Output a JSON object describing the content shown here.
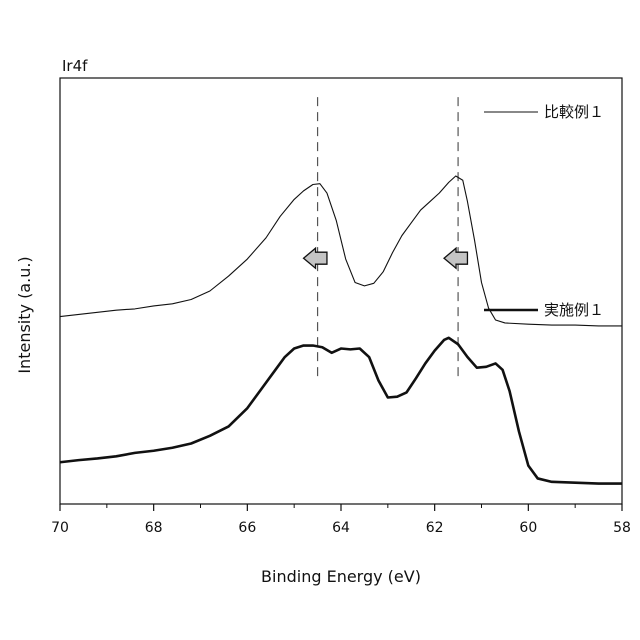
{
  "chart_data": {
    "type": "line",
    "title": "Ir4f",
    "xlabel": "Binding Energy (eV)",
    "ylabel": "Intensity (a.u.)",
    "xlim": [
      70,
      58
    ],
    "x_reversed": true,
    "y_ticks_shown": false,
    "grid": false,
    "legend_placement": "right",
    "x_ticks": [
      "70",
      "68",
      "66",
      "64",
      "62",
      "60",
      "58"
    ],
    "reference_lines_x": [
      64.5,
      61.5
    ],
    "shift_arrows": [
      {
        "x_from": 64.3,
        "x_to": 64.8,
        "direction": "toward higher binding energy"
      },
      {
        "x_from": 61.3,
        "x_to": 61.8,
        "direction": "toward higher binding energy"
      }
    ],
    "series": [
      {
        "name": "比較例１",
        "style": "thin",
        "color": "#111111",
        "points": [
          [
            70.0,
            0.44
          ],
          [
            69.6,
            0.445
          ],
          [
            69.2,
            0.45
          ],
          [
            68.8,
            0.455
          ],
          [
            68.4,
            0.458
          ],
          [
            68.0,
            0.465
          ],
          [
            67.6,
            0.47
          ],
          [
            67.2,
            0.48
          ],
          [
            66.8,
            0.5
          ],
          [
            66.4,
            0.535
          ],
          [
            66.0,
            0.575
          ],
          [
            65.6,
            0.625
          ],
          [
            65.3,
            0.675
          ],
          [
            65.0,
            0.715
          ],
          [
            64.8,
            0.735
          ],
          [
            64.6,
            0.75
          ],
          [
            64.45,
            0.752
          ],
          [
            64.3,
            0.73
          ],
          [
            64.1,
            0.665
          ],
          [
            63.9,
            0.575
          ],
          [
            63.7,
            0.52
          ],
          [
            63.5,
            0.512
          ],
          [
            63.3,
            0.518
          ],
          [
            63.1,
            0.545
          ],
          [
            62.9,
            0.59
          ],
          [
            62.7,
            0.63
          ],
          [
            62.5,
            0.66
          ],
          [
            62.3,
            0.69
          ],
          [
            62.1,
            0.71
          ],
          [
            61.9,
            0.73
          ],
          [
            61.7,
            0.755
          ],
          [
            61.55,
            0.77
          ],
          [
            61.4,
            0.76
          ],
          [
            61.3,
            0.71
          ],
          [
            61.15,
            0.62
          ],
          [
            61.0,
            0.52
          ],
          [
            60.85,
            0.46
          ],
          [
            60.7,
            0.432
          ],
          [
            60.5,
            0.425
          ],
          [
            60.0,
            0.422
          ],
          [
            59.5,
            0.42
          ],
          [
            59.0,
            0.42
          ],
          [
            58.5,
            0.418
          ],
          [
            58.0,
            0.418
          ]
        ]
      },
      {
        "name": "実施例１",
        "style": "thick",
        "color": "#111111",
        "points": [
          [
            70.0,
            0.098
          ],
          [
            69.6,
            0.103
          ],
          [
            69.2,
            0.107
          ],
          [
            68.8,
            0.112
          ],
          [
            68.4,
            0.12
          ],
          [
            68.0,
            0.125
          ],
          [
            67.6,
            0.132
          ],
          [
            67.2,
            0.142
          ],
          [
            66.8,
            0.16
          ],
          [
            66.4,
            0.182
          ],
          [
            66.0,
            0.225
          ],
          [
            65.7,
            0.27
          ],
          [
            65.4,
            0.315
          ],
          [
            65.2,
            0.345
          ],
          [
            65.0,
            0.365
          ],
          [
            64.8,
            0.372
          ],
          [
            64.6,
            0.372
          ],
          [
            64.4,
            0.368
          ],
          [
            64.2,
            0.355
          ],
          [
            64.0,
            0.365
          ],
          [
            63.8,
            0.363
          ],
          [
            63.6,
            0.365
          ],
          [
            63.4,
            0.345
          ],
          [
            63.2,
            0.29
          ],
          [
            63.0,
            0.25
          ],
          [
            62.8,
            0.252
          ],
          [
            62.6,
            0.262
          ],
          [
            62.4,
            0.295
          ],
          [
            62.2,
            0.33
          ],
          [
            62.0,
            0.36
          ],
          [
            61.8,
            0.385
          ],
          [
            61.7,
            0.39
          ],
          [
            61.5,
            0.375
          ],
          [
            61.3,
            0.345
          ],
          [
            61.1,
            0.32
          ],
          [
            60.9,
            0.322
          ],
          [
            60.7,
            0.33
          ],
          [
            60.55,
            0.315
          ],
          [
            60.4,
            0.265
          ],
          [
            60.2,
            0.17
          ],
          [
            60.0,
            0.09
          ],
          [
            59.8,
            0.06
          ],
          [
            59.5,
            0.052
          ],
          [
            59.0,
            0.05
          ],
          [
            58.5,
            0.048
          ],
          [
            58.0,
            0.048
          ]
        ]
      }
    ]
  }
}
